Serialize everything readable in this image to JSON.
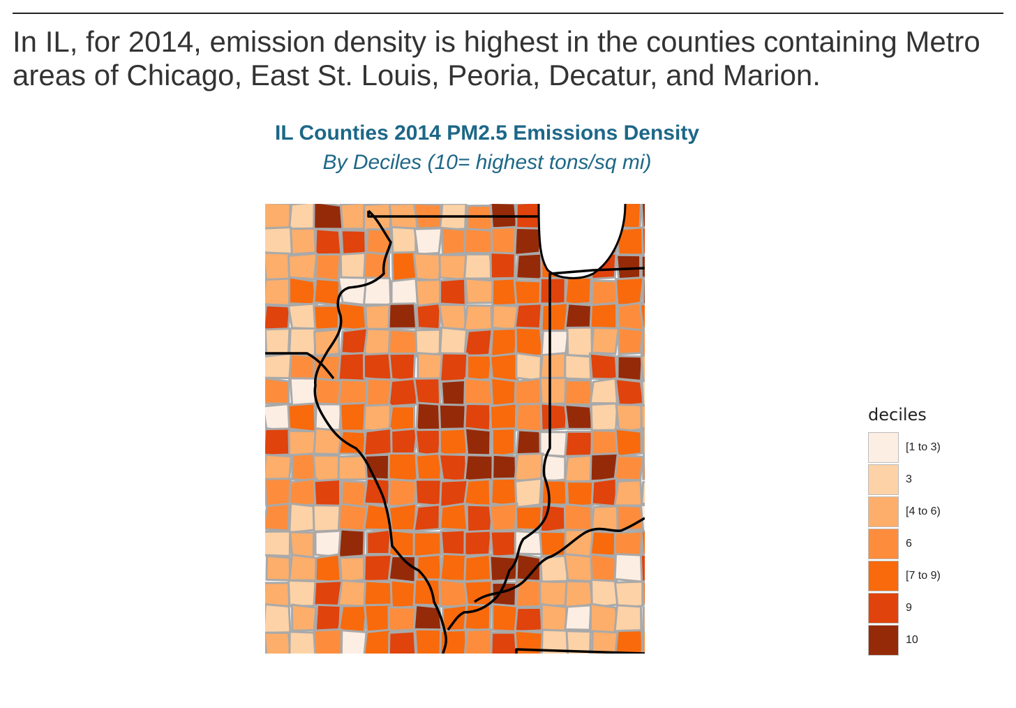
{
  "headline": "In IL, for 2014, emission density is highest in the counties containing Metro areas of Chicago, East St. Louis, Peoria, Decatur, and Marion.",
  "map": {
    "title": "IL Counties 2014 PM2.5 Emissions Density",
    "subtitle": "By Deciles (10= highest tons/sq mi)",
    "colors": {
      "county_border": "#a9a9a9",
      "state_border": "#000000",
      "lake": "#ffffff"
    }
  },
  "legend": {
    "title": "deciles",
    "items": [
      {
        "label": "[1 to 3)",
        "color": "#fdeee4"
      },
      {
        "label": "3",
        "color": "#fdd2a6"
      },
      {
        "label": "[4 to 6)",
        "color": "#fdae6b"
      },
      {
        "label": "6",
        "color": "#fd8d3c"
      },
      {
        "label": "[7 to 9)",
        "color": "#f86a0c"
      },
      {
        "label": "9",
        "color": "#e0430c"
      },
      {
        "label": "10",
        "color": "#952a08"
      }
    ]
  }
}
